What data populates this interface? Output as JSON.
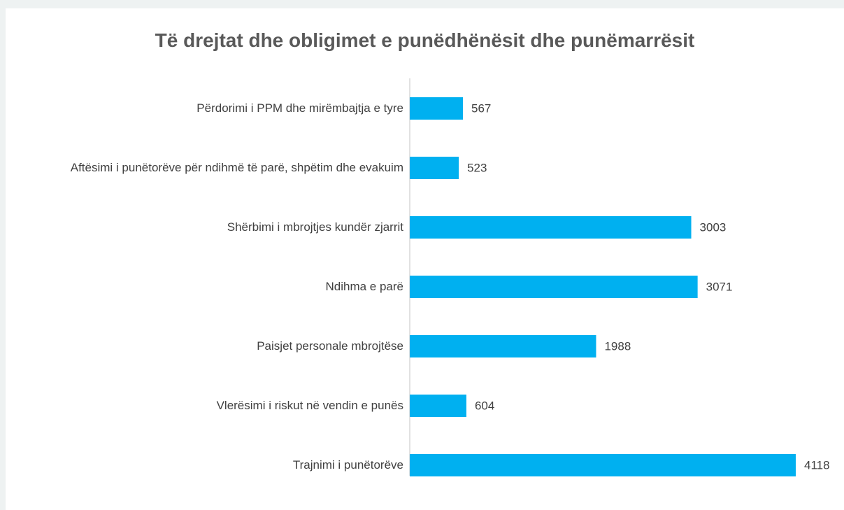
{
  "chart_data": {
    "type": "bar",
    "orientation": "horizontal",
    "title": "Të drejtat dhe obligimet e punëdhënësit dhe punëmarrësit",
    "categories": [
      "Përdorimi i PPM dhe mirëmbajtja e tyre",
      "Aftësimi i punëtorëve për ndihmë të parë, shpëtim dhe evakuim",
      "Shërbimi i mbrojtjes kundër zjarrit",
      "Ndihma e parë",
      "Paisjet personale mbrojtëse",
      "Vlerësimi i riskut në vendin e punës",
      "Trajnimi i punëtorëve"
    ],
    "values": [
      567,
      523,
      3003,
      3071,
      1988,
      604,
      4118
    ],
    "color": "#00b0f0"
  }
}
